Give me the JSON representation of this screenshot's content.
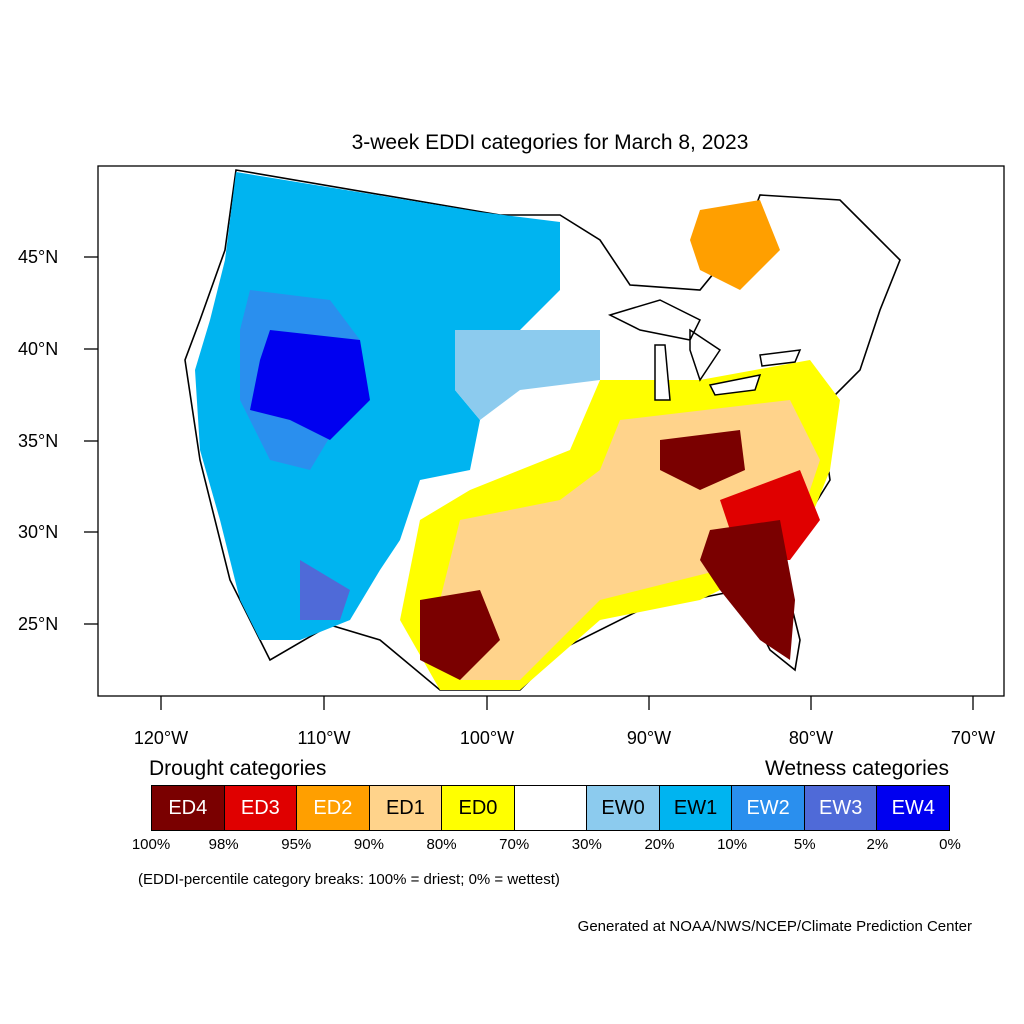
{
  "title": "3-week EDDI categories for March 8, 2023",
  "lat_labels": [
    "45°N",
    "40°N",
    "35°N",
    "30°N",
    "25°N"
  ],
  "lon_labels": [
    "120°W",
    "110°W",
    "100°W",
    "90°W",
    "80°W",
    "70°W"
  ],
  "legend": {
    "drought_heading": "Drought categories",
    "wetness_heading": "Wetness categories",
    "categories": [
      {
        "label": "ED4",
        "color": "#7a0000"
      },
      {
        "label": "ED3",
        "color": "#e00000"
      },
      {
        "label": "ED2",
        "color": "#ff9f00"
      },
      {
        "label": "ED1",
        "color": "#ffd38b"
      },
      {
        "label": "ED0",
        "color": "#ffff00"
      },
      {
        "label": "",
        "color": "#ffffff"
      },
      {
        "label": "EW0",
        "color": "#8ccbee"
      },
      {
        "label": "EW1",
        "color": "#00b4f0"
      },
      {
        "label": "EW2",
        "color": "#2a8fee"
      },
      {
        "label": "EW3",
        "color": "#4f6ad8"
      },
      {
        "label": "EW4",
        "color": "#0000f0"
      }
    ],
    "percentiles": [
      "100%",
      "98%",
      "95%",
      "90%",
      "80%",
      "70%",
      "30%",
      "20%",
      "10%",
      "5%",
      "2%",
      "0%"
    ]
  },
  "note": "(EDDI-percentile category breaks: 100% = driest; 0% = wettest)",
  "credit": "Generated at NOAA/NWS/NCEP/Climate Prediction Center"
}
